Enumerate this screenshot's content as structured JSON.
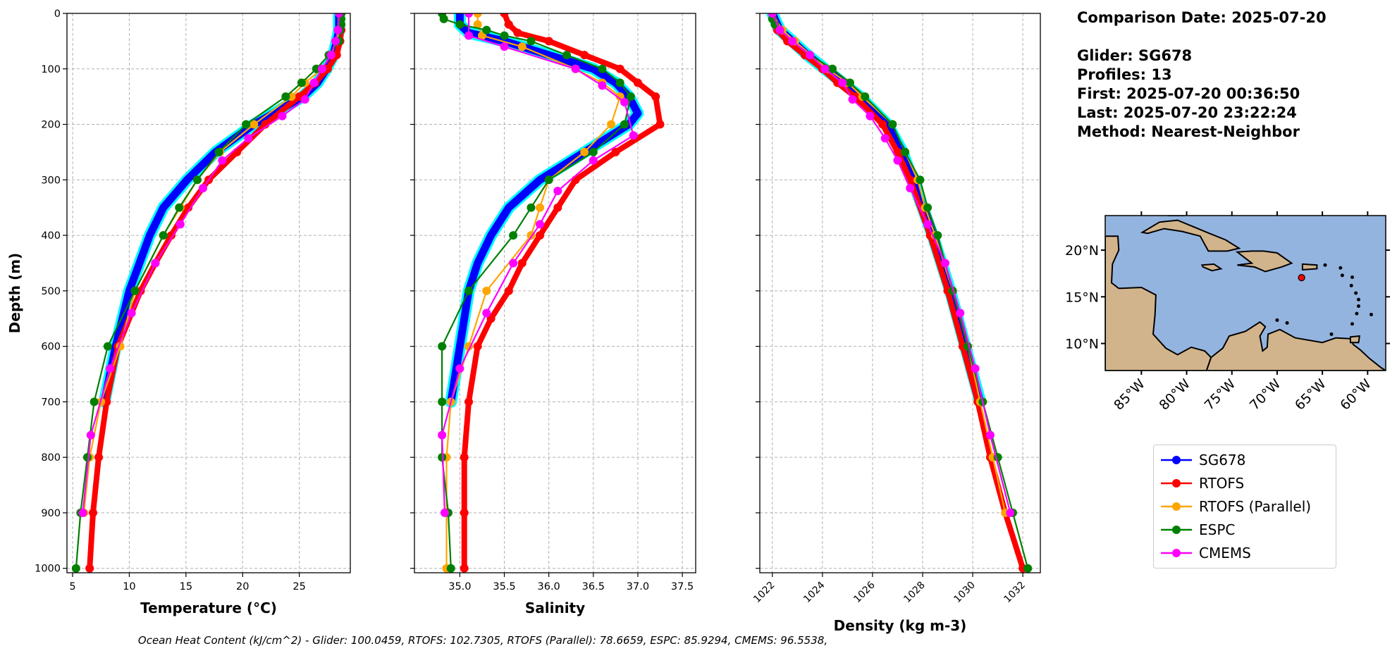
{
  "info": {
    "comparison_date": "Comparison Date: 2025-07-20",
    "glider": "Glider: SG678",
    "profiles": "Profiles: 13",
    "first": "First: 2025-07-20 00:36:50",
    "last": "Last: 2025-07-20 23:22:24",
    "method": "Method: Nearest-Neighbor"
  },
  "caption": "Ocean Heat Content (kJ/cm^2) - Glider: 100.0459,  RTOFS: 102.7305,  RTOFS (Parallel): 78.6659,  ESPC: 85.9294,  CMEMS: 96.5538,",
  "legend": [
    {
      "name": "SG678",
      "color": "#0000ff"
    },
    {
      "name": "RTOFS",
      "color": "#ff0000"
    },
    {
      "name": "RTOFS (Parallel)",
      "color": "#ffa500"
    },
    {
      "name": "ESPC",
      "color": "#008000"
    },
    {
      "name": "CMEMS",
      "color": "#ff00ff"
    }
  ],
  "map": {
    "xticks": [
      "85°W",
      "80°W",
      "75°W",
      "70°W",
      "65°W",
      "60°W"
    ],
    "xtick_values": [
      -85,
      -80,
      -75,
      -70,
      -65,
      -60
    ],
    "yticks": [
      "20°N",
      "15°N",
      "10°N"
    ],
    "ytick_values": [
      20,
      15,
      10
    ],
    "extent": [
      -89.0,
      -58.0,
      7.1,
      23.7
    ],
    "glider_position": [
      -67.3,
      17.05
    ],
    "ocean_color": "#94b4e0",
    "land_color": "#d2b48c"
  },
  "chart_data": [
    {
      "type": "line",
      "xlabel": "Temperature (°C)",
      "ylabel": "Depth (m)",
      "xlim": [
        4.5,
        29.5
      ],
      "ylim": [
        1008,
        0
      ],
      "xticks": [
        5,
        10,
        15,
        20,
        25
      ],
      "yticks": [
        0,
        100,
        200,
        300,
        400,
        500,
        600,
        700,
        800,
        900,
        1000
      ],
      "grid": true,
      "series": [
        {
          "name": "SG678",
          "depth": [
            0,
            30,
            50,
            75,
            100,
            125,
            150,
            175,
            200,
            250,
            300,
            350,
            400,
            450,
            500,
            600,
            700
          ],
          "values": [
            28.5,
            28.5,
            28.3,
            28.0,
            27.4,
            26.6,
            25.3,
            23.2,
            21.0,
            17.6,
            15.1,
            13.0,
            11.8,
            10.9,
            10.0,
            8.8,
            7.8
          ]
        },
        {
          "name": "RTOFS",
          "depth": [
            0,
            30,
            50,
            75,
            100,
            125,
            150,
            200,
            250,
            300,
            350,
            400,
            450,
            500,
            600,
            700,
            800,
            900,
            1000
          ],
          "values": [
            28.7,
            28.7,
            28.6,
            28.3,
            27.5,
            26.4,
            25.0,
            22.0,
            19.5,
            17.0,
            15.2,
            13.7,
            12.3,
            11.0,
            9.0,
            8.0,
            7.3,
            6.8,
            6.5
          ]
        },
        {
          "name": "RTOFS (Parallel)",
          "depth": [
            0,
            30,
            50,
            75,
            100,
            125,
            150,
            200,
            250,
            300,
            350,
            400,
            500,
            600,
            700,
            800,
            900
          ],
          "values": [
            28.6,
            28.5,
            28.3,
            27.8,
            27.0,
            25.5,
            24.3,
            21.0,
            18.0,
            16.0,
            14.5,
            13.0,
            10.5,
            9.2,
            7.5,
            6.5,
            6.0
          ]
        },
        {
          "name": "ESPC",
          "depth": [
            0,
            10,
            20,
            30,
            50,
            75,
            100,
            125,
            150,
            200,
            250,
            300,
            350,
            400,
            500,
            600,
            700,
            800,
            900,
            1000
          ],
          "values": [
            28.7,
            28.7,
            28.7,
            28.6,
            28.5,
            27.6,
            26.5,
            25.2,
            23.8,
            20.3,
            17.9,
            16.0,
            14.4,
            13.0,
            10.5,
            8.1,
            6.9,
            6.3,
            5.7,
            5.3
          ]
        },
        {
          "name": "CMEMS",
          "depth": [
            0,
            30,
            50,
            75,
            100,
            125,
            155,
            185,
            225,
            265,
            315,
            380,
            450,
            540,
            640,
            760,
            900
          ],
          "values": [
            28.5,
            28.4,
            28.2,
            27.8,
            27.0,
            26.3,
            25.5,
            23.5,
            20.5,
            18.2,
            16.5,
            14.5,
            12.3,
            10.2,
            8.3,
            6.6,
            5.9
          ]
        }
      ]
    },
    {
      "type": "line",
      "xlabel": "Salinity",
      "ylabel": "",
      "xlim": [
        34.49,
        37.65
      ],
      "ylim": [
        1008,
        0
      ],
      "xticks": [
        35.0,
        35.5,
        36.0,
        36.5,
        37.0,
        37.5
      ],
      "yticks": [
        0,
        100,
        200,
        300,
        400,
        500,
        600,
        700,
        800,
        900,
        1000
      ],
      "grid": true,
      "series": [
        {
          "name": "SG678",
          "depth": [
            0,
            20,
            35,
            50,
            75,
            100,
            125,
            150,
            180,
            200,
            250,
            300,
            350,
            400,
            450,
            500,
            600,
            700
          ],
          "values": [
            35.0,
            35.0,
            35.1,
            35.5,
            36.0,
            36.5,
            36.75,
            36.9,
            37.0,
            36.9,
            36.4,
            35.9,
            35.55,
            35.35,
            35.2,
            35.1,
            35.0,
            34.9
          ]
        },
        {
          "name": "RTOFS",
          "depth": [
            0,
            20,
            35,
            50,
            75,
            100,
            125,
            150,
            200,
            250,
            300,
            350,
            400,
            450,
            500,
            550,
            600,
            700,
            800,
            900,
            1000
          ],
          "values": [
            35.5,
            35.55,
            35.65,
            36.0,
            36.4,
            36.8,
            37.0,
            37.2,
            37.25,
            36.75,
            36.3,
            36.1,
            35.9,
            35.7,
            35.55,
            35.35,
            35.2,
            35.1,
            35.05,
            35.05,
            35.05
          ]
        },
        {
          "name": "RTOFS (Parallel)",
          "depth": [
            0,
            20,
            40,
            60,
            100,
            125,
            150,
            200,
            250,
            300,
            350,
            400,
            500,
            600,
            700,
            800,
            900,
            1000
          ],
          "values": [
            35.2,
            35.2,
            35.25,
            35.7,
            36.3,
            36.6,
            36.8,
            36.7,
            36.4,
            36.0,
            35.9,
            35.8,
            35.3,
            35.1,
            34.9,
            34.85,
            34.85,
            34.85
          ]
        },
        {
          "name": "ESPC",
          "depth": [
            0,
            10,
            20,
            30,
            40,
            50,
            75,
            100,
            125,
            150,
            200,
            250,
            300,
            350,
            400,
            500,
            600,
            700,
            800,
            900,
            1000
          ],
          "values": [
            34.8,
            34.82,
            35.0,
            35.3,
            35.5,
            35.8,
            36.2,
            36.6,
            36.8,
            36.92,
            36.85,
            36.5,
            36.0,
            35.8,
            35.6,
            35.1,
            34.8,
            34.8,
            34.8,
            34.87,
            34.9
          ]
        },
        {
          "name": "CMEMS",
          "depth": [
            0,
            40,
            60,
            100,
            130,
            160,
            220,
            265,
            320,
            380,
            450,
            540,
            640,
            760,
            900
          ],
          "values": [
            35.1,
            35.1,
            35.5,
            36.3,
            36.6,
            36.85,
            36.95,
            36.5,
            36.1,
            35.9,
            35.6,
            35.3,
            35.0,
            34.8,
            34.83
          ]
        }
      ]
    },
    {
      "type": "line",
      "xlabel": "Density (kg m-3)",
      "ylabel": "",
      "xlim": [
        1021.5,
        1032.7
      ],
      "ylim": [
        1008,
        0
      ],
      "xticks": [
        1022,
        1024,
        1026,
        1028,
        1030,
        1032
      ],
      "yticks": [
        0,
        100,
        200,
        300,
        400,
        500,
        600,
        700,
        800,
        900,
        1000
      ],
      "grid": true,
      "series": [
        {
          "name": "SG678",
          "depth": [
            0,
            30,
            50,
            75,
            100,
            125,
            150,
            200,
            250,
            300,
            400,
            500,
            600,
            700
          ],
          "values": [
            1022.0,
            1022.3,
            1022.8,
            1023.4,
            1024.1,
            1024.8,
            1025.5,
            1026.6,
            1027.2,
            1027.6,
            1028.4,
            1029.1,
            1029.7,
            1030.3
          ]
        },
        {
          "name": "RTOFS",
          "depth": [
            0,
            30,
            50,
            75,
            100,
            125,
            150,
            200,
            250,
            300,
            400,
            500,
            600,
            700,
            800,
            900,
            1000
          ],
          "values": [
            1022.0,
            1022.2,
            1022.6,
            1023.3,
            1024.0,
            1024.6,
            1025.3,
            1026.4,
            1027.0,
            1027.5,
            1028.3,
            1029.0,
            1029.6,
            1030.2,
            1030.7,
            1031.3,
            1032.0
          ]
        },
        {
          "name": "RTOFS (Parallel)",
          "depth": [
            0,
            30,
            50,
            100,
            125,
            150,
            200,
            250,
            300,
            350,
            400,
            500,
            600,
            700,
            800,
            900
          ],
          "values": [
            1022.0,
            1022.4,
            1022.9,
            1024.2,
            1025.0,
            1025.6,
            1026.8,
            1027.3,
            1027.8,
            1028.1,
            1028.5,
            1029.2,
            1029.8,
            1030.3,
            1030.8,
            1031.3
          ]
        },
        {
          "name": "ESPC",
          "depth": [
            0,
            10,
            20,
            30,
            50,
            75,
            100,
            125,
            150,
            200,
            250,
            300,
            350,
            400,
            500,
            600,
            700,
            800,
            900,
            1000
          ],
          "values": [
            1022.0,
            1022.0,
            1022.1,
            1022.3,
            1022.8,
            1023.5,
            1024.4,
            1025.1,
            1025.7,
            1026.8,
            1027.3,
            1027.9,
            1028.2,
            1028.6,
            1029.2,
            1029.8,
            1030.4,
            1031.0,
            1031.6,
            1032.2
          ]
        },
        {
          "name": "CMEMS",
          "depth": [
            0,
            30,
            50,
            75,
            100,
            125,
            155,
            185,
            225,
            265,
            315,
            380,
            450,
            540,
            640,
            760,
            900
          ],
          "values": [
            1022.0,
            1022.3,
            1022.8,
            1023.5,
            1024.1,
            1024.8,
            1025.2,
            1025.9,
            1026.5,
            1027.0,
            1027.5,
            1028.2,
            1028.9,
            1029.5,
            1030.1,
            1030.7,
            1031.5
          ]
        }
      ]
    }
  ]
}
